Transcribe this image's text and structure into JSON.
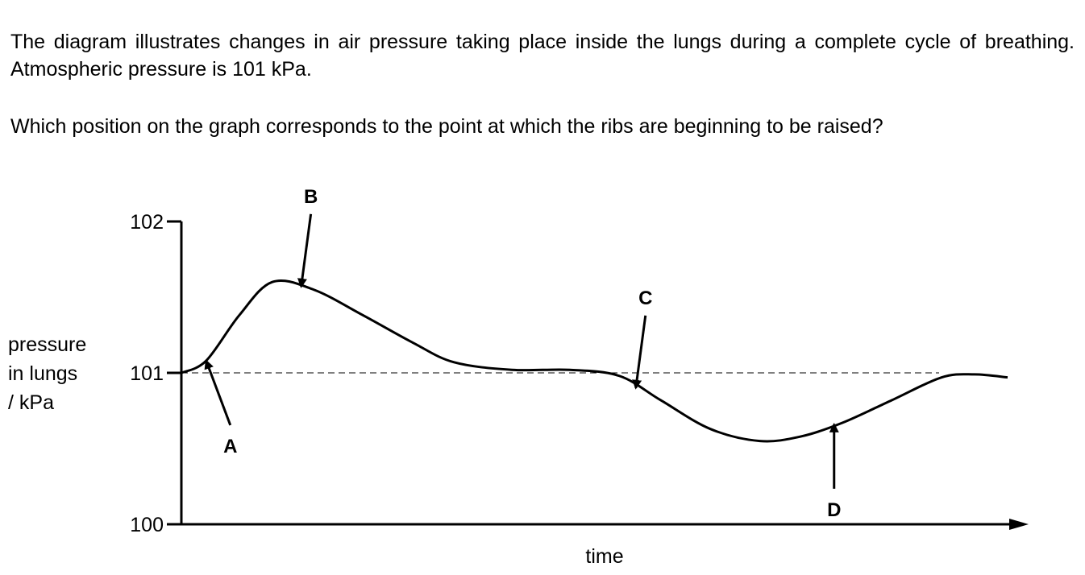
{
  "question": {
    "intro": "The diagram illustrates changes in air pressure taking place inside the lungs during a complete cycle of breathing. Atmospheric pressure is 101 kPa.",
    "prompt": "Which position on the graph corresponds to the point at which the ribs are beginning to be raised?"
  },
  "chart_data": {
    "type": "line",
    "ylabel_lines": [
      "pressure",
      "in lungs",
      "/ kPa"
    ],
    "xlabel": "time",
    "yticks": [
      100,
      101,
      102
    ],
    "ylim": [
      100,
      102
    ],
    "xlim": [
      0,
      10
    ],
    "reference_line": {
      "y": 101,
      "style": "dashed"
    },
    "series": [
      {
        "x": [
          0.0,
          0.3,
          0.7,
          1.1,
          1.6,
          2.2,
          2.8,
          3.3,
          4.0,
          4.7,
          5.3,
          5.8,
          6.4,
          7.0,
          7.5,
          8.0,
          8.6,
          9.2,
          9.6,
          10.0
        ],
        "y": [
          101.0,
          101.08,
          101.38,
          101.6,
          101.55,
          101.38,
          101.2,
          101.07,
          101.02,
          101.02,
          100.98,
          100.82,
          100.63,
          100.55,
          100.58,
          100.67,
          100.82,
          100.97,
          100.99,
          100.97
        ]
      }
    ],
    "annotations": [
      {
        "label": "A",
        "x": 0.3,
        "y": 101.08,
        "direction": "up"
      },
      {
        "label": "B",
        "x": 1.45,
        "y": 101.57,
        "direction": "down"
      },
      {
        "label": "C",
        "x": 5.5,
        "y": 100.9,
        "direction": "down"
      },
      {
        "label": "D",
        "x": 7.9,
        "y": 100.66,
        "direction": "up"
      }
    ]
  }
}
